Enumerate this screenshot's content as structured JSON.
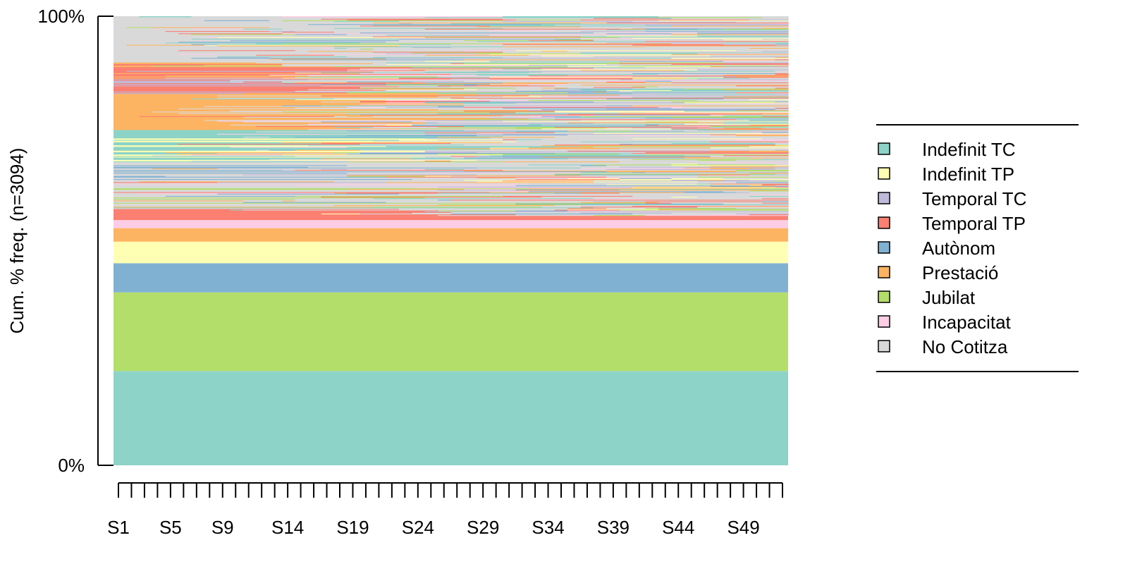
{
  "chart_data": {
    "type": "sequence-index",
    "n": 3094,
    "ylabel": "Cum. % freq. (n=3094)",
    "y_tick_labels": [
      "0%",
      "100%"
    ],
    "x_tick_labels": [
      "S1",
      "S5",
      "S9",
      "S14",
      "S19",
      "S24",
      "S29",
      "S34",
      "S39",
      "S44",
      "S49"
    ],
    "x_labeled_positions": [
      1,
      5,
      9,
      14,
      19,
      24,
      29,
      34,
      39,
      44,
      49
    ],
    "n_time_points": 52,
    "states": [
      {
        "name": "Indefinit TC",
        "color": "#8DD3C7"
      },
      {
        "name": "Indefinit TP",
        "color": "#FFFFB3"
      },
      {
        "name": "Temporal TC",
        "color": "#BEBADA"
      },
      {
        "name": "Temporal TP",
        "color": "#FB8072"
      },
      {
        "name": "Autònom",
        "color": "#80B1D3"
      },
      {
        "name": "Prestació",
        "color": "#FDB462"
      },
      {
        "name": "Jubilat",
        "color": "#B3DE69"
      },
      {
        "name": "Incapacitat",
        "color": "#FCCDE5"
      },
      {
        "name": "No Cotitza",
        "color": "#D9D9D9"
      }
    ],
    "stable_bands_bottom_up": [
      {
        "state": "Indefinit TC",
        "start_pct": 0,
        "end_pct": 21
      },
      {
        "state": "Jubilat",
        "start_pct": 21,
        "end_pct": 38.5
      },
      {
        "state": "Autònom",
        "start_pct": 38.5,
        "end_pct": 45
      },
      {
        "state": "Indefinit TP",
        "start_pct": 45,
        "end_pct": 49.8
      },
      {
        "state": "Prestació",
        "start_pct": 49.8,
        "end_pct": 52.8
      },
      {
        "state": "Incapacitat",
        "start_pct": 52.8,
        "end_pct": 54.6
      },
      {
        "state": "Temporal TP",
        "start_pct": 54.6,
        "end_pct": 55.6
      }
    ],
    "mixed_region_pct": [
      55.6,
      100
    ],
    "approx_state_share_pct_at_S1_mixed_region": {
      "Indefinit TC": 12,
      "Prestació": 9,
      "Temporal TP": 4,
      "Autònom": 2,
      "Temporal TC": 2,
      "No Cotitza": 15.4
    },
    "legend_position": "right",
    "grid": false
  }
}
